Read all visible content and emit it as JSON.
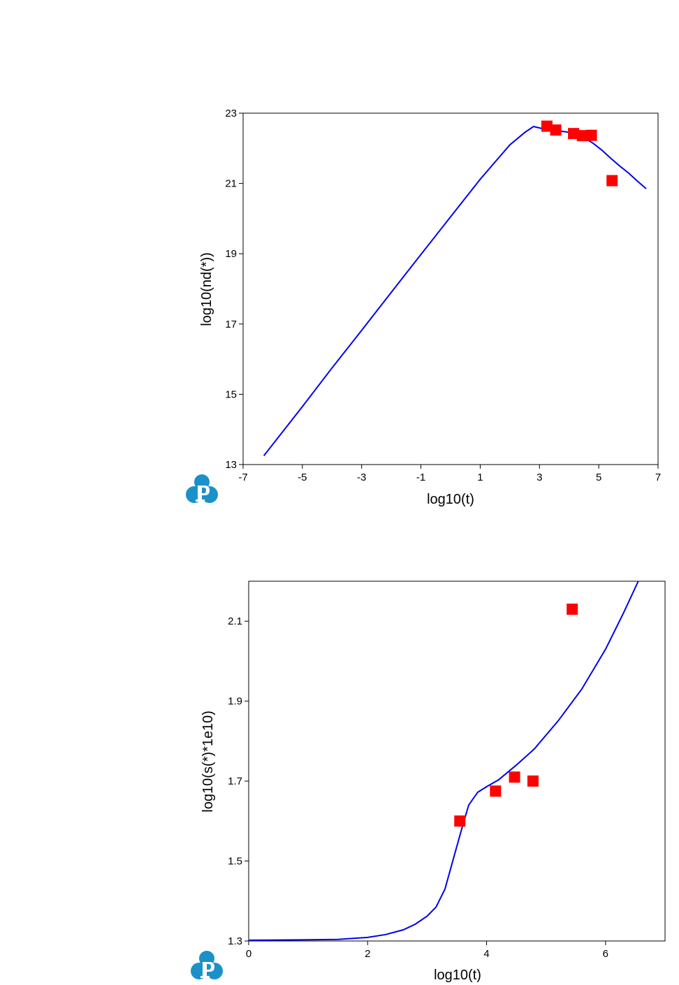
{
  "chart_data": [
    {
      "type": "line",
      "xlabel": "log10(t)",
      "ylabel": "log10(nd(*))",
      "xlim": [
        -7,
        7
      ],
      "ylim": [
        13,
        23
      ],
      "xticks": [
        -7,
        -5,
        -3,
        -1,
        1,
        3,
        5,
        7
      ],
      "yticks": [
        13,
        15,
        17,
        19,
        21,
        23
      ],
      "grid": false,
      "series": [
        {
          "type": "line",
          "color": "#0000ee",
          "x": [
            -6.3,
            -5.0,
            -4.0,
            -3.0,
            -2.0,
            -1.0,
            0.0,
            1.0,
            2.0,
            2.5,
            2.8,
            3.0,
            3.3,
            3.6,
            3.9,
            4.2,
            4.5,
            4.8,
            5.1,
            5.4,
            5.7,
            6.0,
            6.3,
            6.6
          ],
          "y": [
            13.25,
            14.65,
            15.75,
            16.82,
            17.9,
            18.98,
            20.05,
            21.12,
            22.1,
            22.45,
            22.62,
            22.58,
            22.52,
            22.5,
            22.47,
            22.4,
            22.3,
            22.15,
            21.95,
            21.72,
            21.5,
            21.3,
            21.07,
            20.85
          ]
        },
        {
          "type": "scatter",
          "color": "#ff0000",
          "x": [
            3.25,
            3.55,
            4.15,
            4.45,
            4.75,
            5.45
          ],
          "y": [
            22.63,
            22.52,
            22.42,
            22.36,
            22.37,
            21.08
          ]
        }
      ]
    },
    {
      "type": "line",
      "xlabel": "log10(t)",
      "ylabel": "log10(s(*)*1e10)",
      "xlim": [
        0,
        7
      ],
      "ylim": [
        1.3,
        2.2
      ],
      "xticks": [
        0,
        2,
        4,
        6
      ],
      "yticks": [
        1.3,
        1.5,
        1.7,
        1.9,
        2.1
      ],
      "grid": false,
      "series": [
        {
          "type": "line",
          "color": "#0000ee",
          "x": [
            0.0,
            1.0,
            1.5,
            2.0,
            2.3,
            2.6,
            2.8,
            3.0,
            3.15,
            3.3,
            3.45,
            3.6,
            3.7,
            3.85,
            4.0,
            4.2,
            4.5,
            4.8,
            5.2,
            5.6,
            6.0,
            6.3,
            6.55
          ],
          "y": [
            1.302,
            1.303,
            1.304,
            1.309,
            1.316,
            1.328,
            1.342,
            1.362,
            1.385,
            1.43,
            1.51,
            1.59,
            1.64,
            1.672,
            1.686,
            1.703,
            1.74,
            1.78,
            1.85,
            1.93,
            2.03,
            2.12,
            2.2
          ]
        },
        {
          "type": "scatter",
          "color": "#ff0000",
          "x": [
            3.55,
            4.15,
            4.47,
            4.78,
            5.44
          ],
          "y": [
            1.6,
            1.675,
            1.71,
            1.7,
            2.13
          ]
        }
      ]
    }
  ]
}
